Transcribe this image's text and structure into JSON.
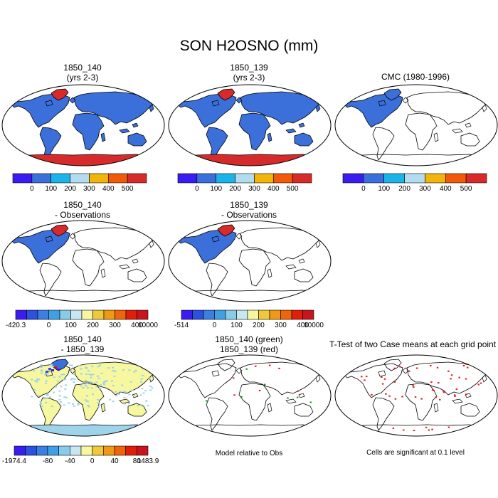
{
  "figure": {
    "title": "SON H2OSNO (mm)"
  },
  "panels": [
    {
      "id": "p1",
      "title_lines": [
        "1850_140",
        "(yrs 2-3)"
      ],
      "map": "case"
    },
    {
      "id": "p2",
      "title_lines": [
        "1850_139",
        "(yrs 2-3)"
      ],
      "map": "case"
    },
    {
      "id": "p3",
      "title_lines": [
        "CMC (1980-1996)"
      ],
      "map": "obs"
    },
    {
      "id": "p4",
      "title_lines": [
        "1850_140",
        "- Observations"
      ],
      "map": "diffobs"
    },
    {
      "id": "p5",
      "title_lines": [
        "1850_139",
        "- Observations"
      ],
      "map": "diffobs"
    },
    {
      "id": "p6",
      "title_lines": [
        "1850_140",
        "- 1850_139"
      ],
      "map": "diffcase"
    },
    {
      "id": "p7",
      "title_lines": [
        "1850_140 (green)",
        "1850_139 (red)"
      ],
      "map": "points"
    },
    {
      "id": "p8",
      "title_lines": [
        "T-Test of two Case means at each grid point"
      ],
      "map": "ttest"
    }
  ],
  "colorbars": {
    "top": {
      "colors": [
        "#3b1cf0",
        "#3b6fd9",
        "#1cb4e8",
        "#b4dcf0",
        "#f0b40a",
        "#f05a0a",
        "#d72a2a"
      ],
      "labels": [
        "0",
        "100",
        "200",
        "300",
        "400",
        "500"
      ]
    },
    "diff_obs_140": {
      "colors": [
        "#3b1cf0",
        "#2c50e0",
        "#3b7fe0",
        "#40a0e6",
        "#88ccea",
        "#c8e6f0",
        "#f7f7a0",
        "#f0c83c",
        "#f09a14",
        "#f0640a",
        "#e01e0a",
        "#c8141e"
      ],
      "labels": [
        "-420.3",
        "0",
        "100",
        "200",
        "300",
        "400",
        "10000"
      ]
    },
    "diff_obs_139": {
      "colors": [
        "#3b1cf0",
        "#2c50e0",
        "#3b7fe0",
        "#40a0e6",
        "#88ccea",
        "#c8e6f0",
        "#f7f7a0",
        "#f0c83c",
        "#f09a14",
        "#f0640a",
        "#e01e0a",
        "#c8141e"
      ],
      "labels": [
        "-514",
        "0",
        "100",
        "200",
        "300",
        "400",
        "10000"
      ]
    },
    "diff_case": {
      "colors": [
        "#3b1cf0",
        "#2c50e0",
        "#3b7fe0",
        "#40a0e6",
        "#88ccea",
        "#c8e6f0",
        "#f7f7a0",
        "#f0c83c",
        "#f09a14",
        "#f0640a",
        "#e01e0a",
        "#c8141e"
      ],
      "labels": [
        "-1974.4",
        "-80",
        "-40",
        "0",
        "40",
        "80",
        "1483.9"
      ]
    }
  },
  "notes": {
    "model_relative": "Model relative to Obs",
    "significance": "Cells are significant at 0.1 level"
  },
  "map_colors": {
    "land_case": "#3b6fd9",
    "antarctic_case": "#d72a2a",
    "land_diffcase": "#f7f7a0",
    "sig_red": "#e01e1e",
    "sig_green": "#1e9a1e",
    "greenland_obs_diff": "#d72a2a"
  }
}
